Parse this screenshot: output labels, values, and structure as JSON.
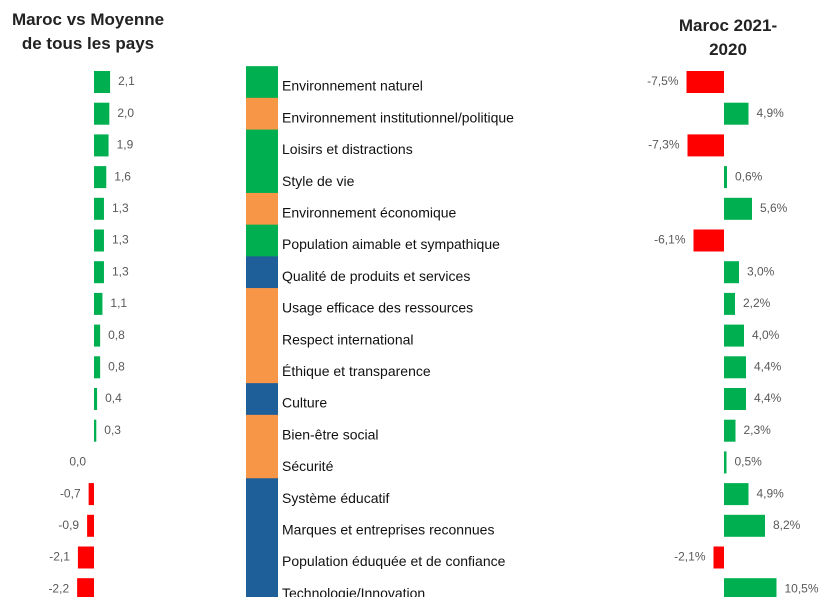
{
  "chart_data": [
    {
      "type": "bar",
      "orientation": "horizontal",
      "title": "Maroc vs Moyenne de tous les pays",
      "categories": [
        "Environnement naturel",
        "Environnement institutionnel/politique",
        "Loisirs et distractions",
        "Style de vie",
        "Environnement économique",
        "Population aimable et sympathique",
        "Qualité de produits et services",
        "Usage efficace des ressources",
        "Respect international",
        "Éthique et transparence",
        "Culture",
        "Bien-être social",
        "Sécurité",
        "Système éducatif",
        "Marques et entreprises reconnues",
        "Population éduquée et de confiance",
        "Technologie/Innovation"
      ],
      "category_colors": [
        "#00b050",
        "#f79646",
        "#00b050",
        "#00b050",
        "#f79646",
        "#00b050",
        "#1f5f99",
        "#f79646",
        "#f79646",
        "#f79646",
        "#1f5f99",
        "#f79646",
        "#f79646",
        "#1f5f99",
        "#1f5f99",
        "#1f5f99",
        "#1f5f99"
      ],
      "values": [
        2.1,
        2.0,
        1.9,
        1.6,
        1.3,
        1.3,
        1.3,
        1.1,
        0.8,
        0.8,
        0.4,
        0.3,
        0.0,
        -0.7,
        -0.9,
        -2.1,
        -2.2
      ],
      "value_labels": [
        "2,1",
        "2,0",
        "1,9",
        "1,6",
        "1,3",
        "1,3",
        "1,3",
        "1,1",
        "0,8",
        "0,8",
        "0,4",
        "0,3",
        "0,0",
        "-0,7",
        "-0,9",
        "-2,1",
        "-2,2"
      ],
      "positive_color": "#00b050",
      "negative_color": "#ff0000",
      "xlim": [
        -3,
        3
      ]
    },
    {
      "type": "bar",
      "orientation": "horizontal",
      "title": "Maroc 2021-2020",
      "values": [
        -7.5,
        4.9,
        -7.3,
        0.6,
        5.6,
        -6.1,
        3.0,
        2.2,
        4.0,
        4.4,
        4.4,
        2.3,
        0.5,
        4.9,
        8.2,
        -2.1,
        10.5
      ],
      "value_labels": [
        "-7,5%",
        "4,9%",
        "-7,3%",
        "0,6%",
        "5,6%",
        "-6,1%",
        "3,0%",
        "2,2%",
        "4,0%",
        "4,4%",
        "4,4%",
        "2,3%",
        "0,5%",
        "4,9%",
        "8,2%",
        "-2,1%",
        "10,5%"
      ],
      "positive_color": "#00b050",
      "negative_color": "#ff0000",
      "xlim": [
        -10,
        12
      ]
    }
  ]
}
